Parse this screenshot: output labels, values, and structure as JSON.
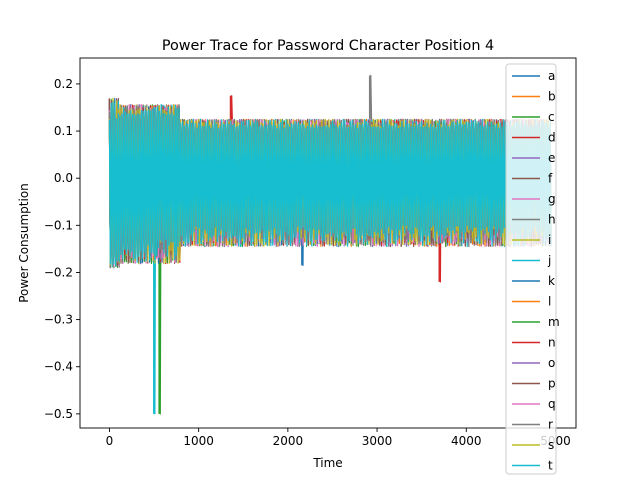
{
  "chart_data": {
    "type": "line",
    "title": "Power Trace for Password Character Position 4",
    "xlabel": "Time",
    "ylabel": "Power Consumption",
    "xlim": [
      -330,
      5230
    ],
    "ylim": [
      -0.53,
      0.255
    ],
    "xticks": [
      {
        "value": 0,
        "label": "0"
      },
      {
        "value": 1000,
        "label": "1000"
      },
      {
        "value": 2000,
        "label": "2000"
      },
      {
        "value": 3000,
        "label": "3000"
      },
      {
        "value": 4000,
        "label": "4000"
      },
      {
        "value": 5000,
        "label": "5000"
      }
    ],
    "yticks": [
      {
        "value": 0.2,
        "label": "0.2"
      },
      {
        "value": 0.1,
        "label": "0.1"
      },
      {
        "value": 0.0,
        "label": "0.0"
      },
      {
        "value": -0.1,
        "label": "−0.1"
      },
      {
        "value": -0.2,
        "label": "−0.2"
      },
      {
        "value": -0.3,
        "label": "−0.3"
      },
      {
        "value": -0.4,
        "label": "−0.4"
      },
      {
        "value": -0.5,
        "label": "−0.5"
      }
    ],
    "grid": false,
    "legend_position": "top-right",
    "trace_length": 4950,
    "series": [
      {
        "name": "a",
        "color": "#1f77b4"
      },
      {
        "name": "b",
        "color": "#ff7f0e"
      },
      {
        "name": "c",
        "color": "#2ca02c",
        "spike": {
          "x": 560,
          "y": -0.5
        }
      },
      {
        "name": "d",
        "color": "#d62728",
        "spike": {
          "x": 1360,
          "y": 0.175
        }
      },
      {
        "name": "e",
        "color": "#9467bd"
      },
      {
        "name": "f",
        "color": "#8c564b"
      },
      {
        "name": "g",
        "color": "#e377c2"
      },
      {
        "name": "h",
        "color": "#7f7f7f",
        "spike": {
          "x": 2920,
          "y": 0.218
        }
      },
      {
        "name": "i",
        "color": "#bcbd22"
      },
      {
        "name": "j",
        "color": "#17becf",
        "spike": {
          "x": 500,
          "y": -0.5
        }
      },
      {
        "name": "k",
        "color": "#1f77b4",
        "spike": {
          "x": 2160,
          "y": -0.185
        }
      },
      {
        "name": "l",
        "color": "#ff7f0e"
      },
      {
        "name": "m",
        "color": "#2ca02c"
      },
      {
        "name": "n",
        "color": "#d62728",
        "spike": {
          "x": 3700,
          "y": -0.22
        }
      },
      {
        "name": "o",
        "color": "#9467bd"
      },
      {
        "name": "p",
        "color": "#8c564b"
      },
      {
        "name": "q",
        "color": "#e377c2"
      },
      {
        "name": "r",
        "color": "#7f7f7f"
      },
      {
        "name": "s",
        "color": "#bcbd22"
      },
      {
        "name": "t",
        "color": "#17becf"
      }
    ]
  }
}
